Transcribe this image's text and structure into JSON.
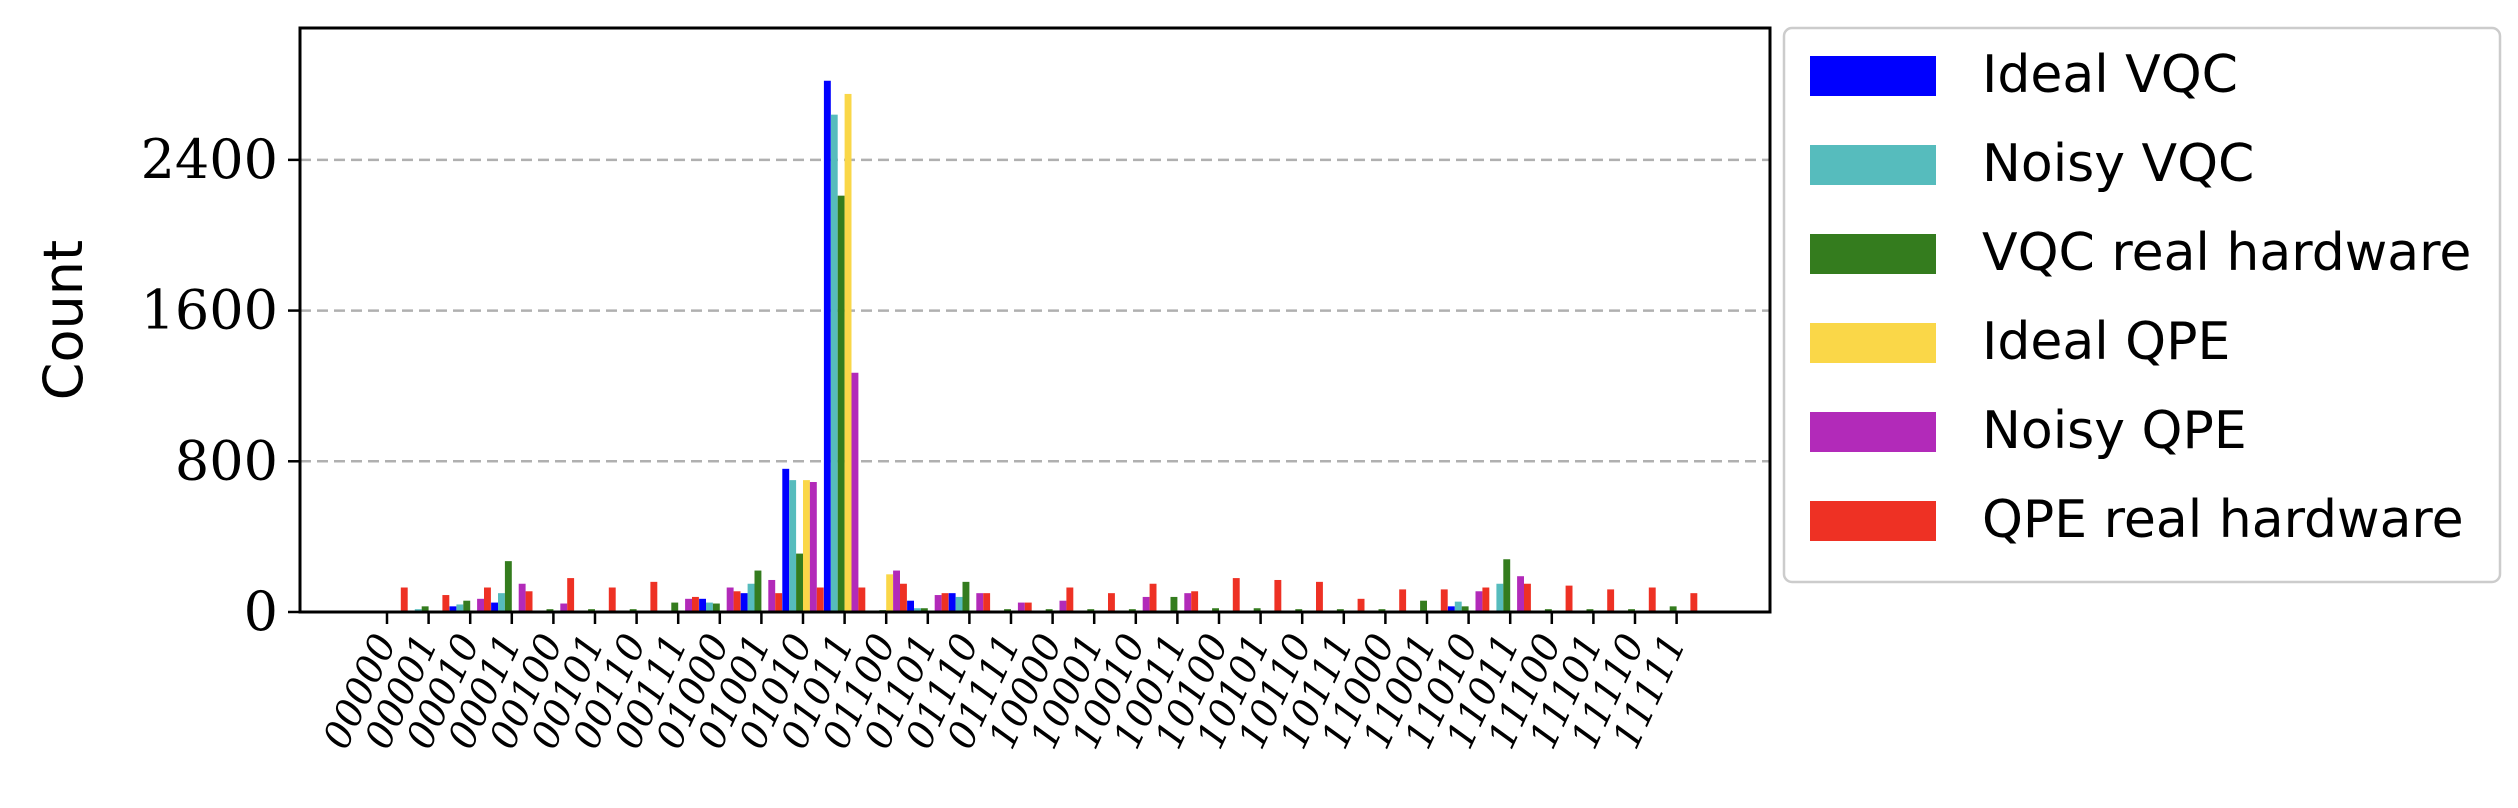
{
  "chart_data": {
    "type": "bar",
    "ylabel": "Count",
    "xlabel": "",
    "ylim": [
      0,
      3100
    ],
    "yticks": [
      0,
      800,
      1600,
      2400
    ],
    "grid": "y-dashed",
    "legend_position": "outside-right",
    "categories": [
      "00000",
      "00001",
      "00010",
      "00011",
      "00100",
      "00101",
      "00110",
      "00111",
      "01000",
      "01001",
      "01010",
      "01011",
      "01100",
      "01101",
      "01110",
      "01111",
      "10000",
      "10001",
      "10010",
      "10011",
      "10100",
      "10101",
      "10110",
      "10111",
      "11000",
      "11001",
      "11010",
      "11011",
      "11100",
      "11101",
      "11110",
      "11111"
    ],
    "series": [
      {
        "name": "Ideal VQC",
        "color": "#0000ff",
        "values": [
          0,
          0,
          30,
          50,
          0,
          0,
          0,
          0,
          70,
          100,
          760,
          2820,
          0,
          60,
          100,
          0,
          0,
          0,
          0,
          0,
          0,
          0,
          0,
          0,
          0,
          0,
          30,
          0,
          0,
          0,
          0,
          0
        ]
      },
      {
        "name": "Noisy VQC",
        "color": "#56bcbd",
        "values": [
          0,
          15,
          40,
          100,
          0,
          0,
          0,
          0,
          50,
          150,
          700,
          2640,
          0,
          20,
          80,
          0,
          0,
          0,
          0,
          0,
          0,
          0,
          0,
          0,
          0,
          0,
          55,
          150,
          0,
          0,
          0,
          0
        ]
      },
      {
        "name": "VQC real hardware",
        "color": "#347c1e",
        "values": [
          0,
          30,
          60,
          270,
          15,
          15,
          15,
          50,
          45,
          220,
          310,
          2210,
          10,
          20,
          160,
          15,
          15,
          15,
          15,
          80,
          20,
          20,
          15,
          15,
          15,
          60,
          30,
          280,
          15,
          15,
          15,
          30
        ]
      },
      {
        "name": "Ideal QPE",
        "color": "#fad748",
        "values": [
          0,
          0,
          0,
          0,
          0,
          0,
          0,
          0,
          0,
          0,
          700,
          2750,
          200,
          0,
          0,
          0,
          0,
          0,
          0,
          0,
          0,
          0,
          0,
          0,
          0,
          0,
          0,
          0,
          0,
          0,
          0,
          0
        ]
      },
      {
        "name": "Noisy QPE",
        "color": "#b22ab9",
        "values": [
          0,
          0,
          70,
          150,
          45,
          0,
          0,
          70,
          130,
          170,
          690,
          1270,
          220,
          90,
          100,
          50,
          60,
          0,
          80,
          100,
          0,
          0,
          0,
          0,
          0,
          0,
          110,
          190,
          0,
          0,
          0,
          0
        ]
      },
      {
        "name": "QPE real hardware",
        "color": "#ee3124",
        "values": [
          130,
          90,
          130,
          110,
          180,
          130,
          160,
          80,
          110,
          100,
          130,
          130,
          150,
          100,
          100,
          50,
          130,
          100,
          150,
          110,
          180,
          170,
          160,
          70,
          120,
          120,
          130,
          150,
          140,
          120,
          130,
          100
        ]
      }
    ]
  }
}
